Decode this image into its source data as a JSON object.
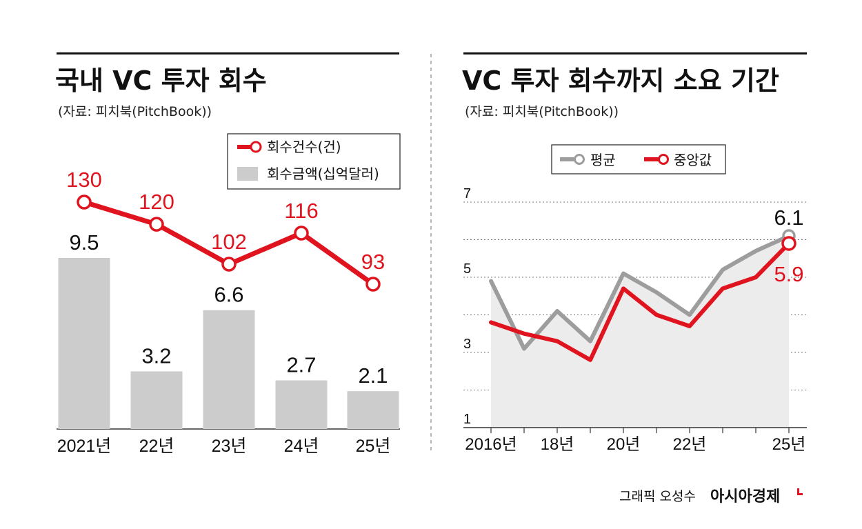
{
  "left_panel": {
    "title": "국내 VC 투자 회수",
    "source": "(자료: 피치북(PitchBook))",
    "legend_line": "회수건수(건)",
    "legend_bar": "회수금액(십억달러)"
  },
  "right_panel": {
    "title": "VC 투자 회수까지 소요 기간",
    "source": "(자료: 피치북(PitchBook))",
    "legend_avg": "평균",
    "legend_median": "중앙값"
  },
  "credit": {
    "graphic": "그래픽 오성수",
    "brand": "아시아경제"
  },
  "colors": {
    "red": "#e0141e",
    "gray_line": "#9d9d9d",
    "bar": "#cccccc",
    "area": "#ececec"
  },
  "chart_data": [
    {
      "type": "bar+line",
      "title": "국내 VC 투자 회수",
      "categories": [
        "2021년",
        "22년",
        "23년",
        "24년",
        "25년"
      ],
      "series": [
        {
          "name": "회수건수(건)",
          "kind": "line",
          "values": [
            130,
            120,
            102,
            116,
            93
          ],
          "labels": [
            "130",
            "120",
            "102",
            "116",
            "93"
          ]
        },
        {
          "name": "회수금액(십억달러)",
          "kind": "bar",
          "values": [
            9.5,
            3.2,
            6.6,
            2.7,
            2.1
          ],
          "labels": [
            "9.5",
            "3.2",
            "6.6",
            "2.7",
            "2.1"
          ]
        }
      ],
      "bar_ylim": [
        0,
        9.5
      ],
      "line_ylim": [
        93,
        130
      ],
      "legend_position": "top-right"
    },
    {
      "type": "line",
      "title": "VC 투자 회수까지 소요 기간",
      "x": [
        2016,
        2017,
        2018,
        2019,
        2020,
        2021,
        2022,
        2023,
        2024,
        2025
      ],
      "x_tick_labels": [
        {
          "x": 2016,
          "label": "2016년"
        },
        {
          "x": 2018,
          "label": "18년"
        },
        {
          "x": 2020,
          "label": "20년"
        },
        {
          "x": 2022,
          "label": "22년"
        },
        {
          "x": 2025,
          "label": "25년"
        }
      ],
      "y_ticks": [
        {
          "value": 7,
          "label": "7"
        },
        {
          "value": 5,
          "label": "5"
        },
        {
          "value": 3,
          "label": "3"
        },
        {
          "value": 1,
          "label": "1"
        }
      ],
      "ylim": [
        1,
        7
      ],
      "grid": "dotted horizontal",
      "series": [
        {
          "name": "평균",
          "values": [
            4.9,
            3.1,
            4.1,
            3.3,
            5.1,
            4.6,
            4.0,
            5.2,
            5.7,
            6.1
          ],
          "end_label": "6.1"
        },
        {
          "name": "중앙값",
          "values": [
            3.8,
            3.5,
            3.3,
            2.8,
            4.7,
            4.0,
            3.7,
            4.7,
            5.0,
            5.9
          ],
          "end_label": "5.9"
        }
      ],
      "legend_position": "top"
    }
  ]
}
